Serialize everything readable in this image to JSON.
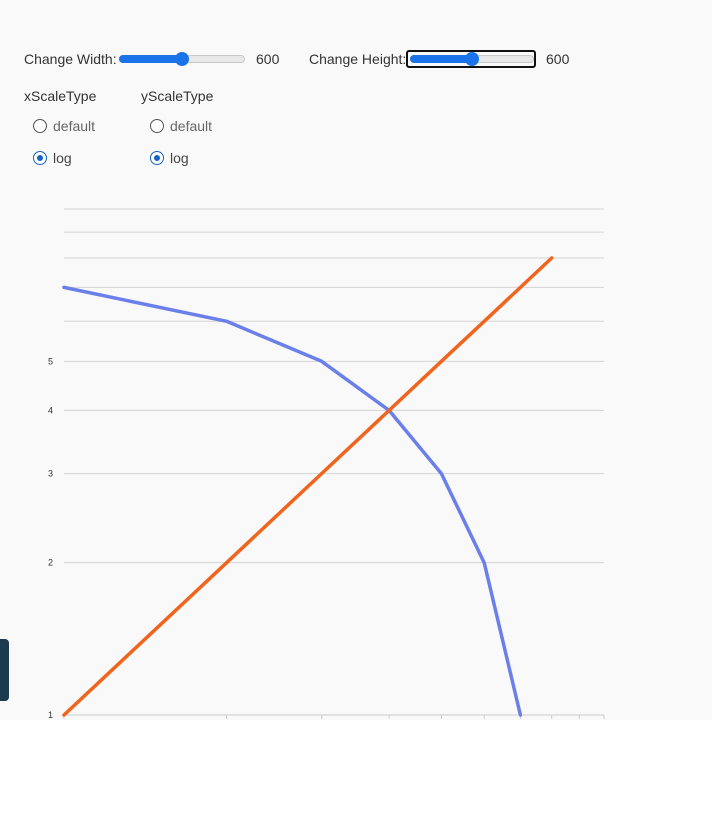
{
  "controls": {
    "width_label": "Change Width:",
    "width_value": "600",
    "width_level": 0.5,
    "height_label": "Change Height:",
    "height_value": "600",
    "height_level": 0.5
  },
  "x_scale": {
    "title": "xScaleType",
    "options": [
      "default",
      "log"
    ],
    "selected": "log"
  },
  "y_scale": {
    "title": "yScaleType",
    "options": [
      "default",
      "log"
    ],
    "selected": "log"
  },
  "colors": {
    "series_a": "#6b7feb",
    "series_b": "#f0641e",
    "accent": "#1a73e8"
  },
  "chart_data": {
    "type": "line",
    "x_scale": "log",
    "y_scale": "log",
    "xlim": [
      1,
      10
    ],
    "ylim": [
      1,
      10
    ],
    "grid": true,
    "ytick_labels": [
      "1",
      "2",
      "3",
      "4",
      "5"
    ],
    "series": [
      {
        "x": [
          1,
          2,
          3,
          4,
          5,
          6,
          7
        ],
        "y": [
          7,
          6,
          5,
          4,
          3,
          2,
          1
        ]
      },
      {
        "x": [
          1,
          2,
          3,
          4,
          5,
          6,
          7,
          8
        ],
        "y": [
          1,
          2,
          3,
          4,
          5,
          6,
          7,
          8
        ]
      }
    ]
  }
}
